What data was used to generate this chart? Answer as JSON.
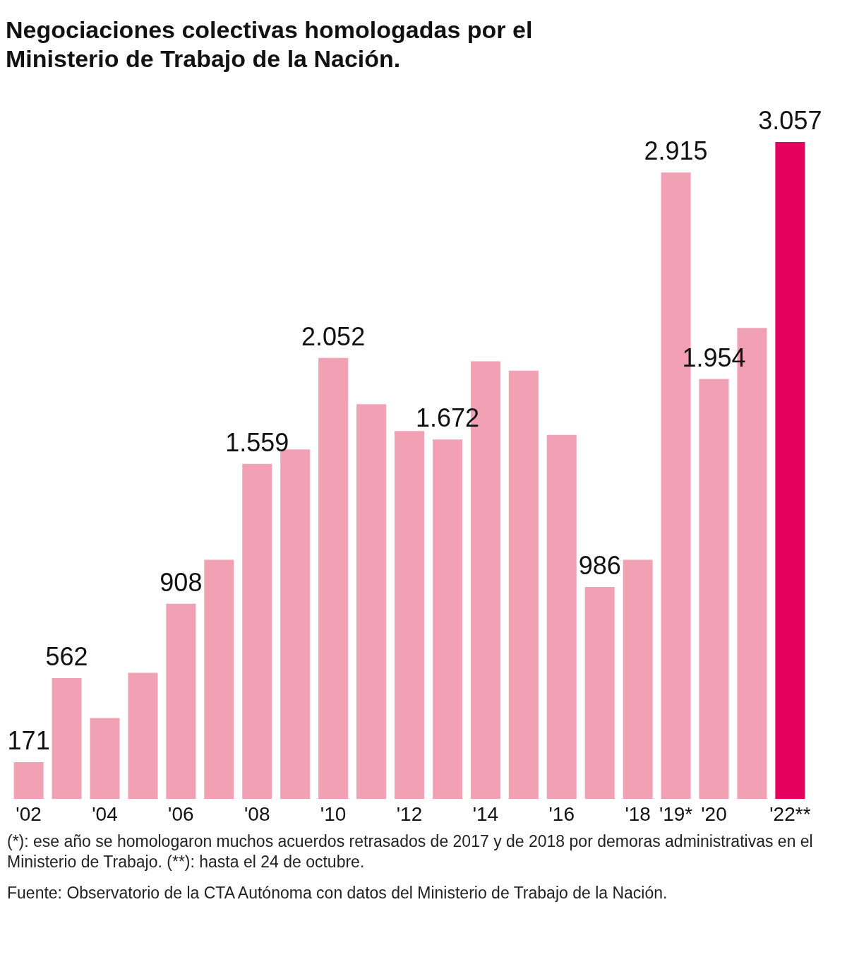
{
  "chart_data": {
    "type": "bar",
    "title": "Negociaciones colectivas homologadas por el Ministerio de Trabajo de la Nación.",
    "categories": [
      "'02",
      null,
      "'04",
      null,
      "'06",
      null,
      "'08",
      null,
      "'10",
      null,
      "'12",
      null,
      "'14",
      null,
      "'16",
      null,
      "'18",
      "'19*",
      "'20",
      null,
      "'22**"
    ],
    "values": [
      171,
      562,
      376,
      587,
      908,
      1113,
      1559,
      1626,
      2052,
      1837,
      1712,
      1672,
      2036,
      1993,
      1694,
      986,
      1113,
      2915,
      1954,
      2192,
      3057
    ],
    "colors": [
      "#f2a1b5",
      "#f2a1b5",
      "#f2a1b5",
      "#f2a1b5",
      "#f2a1b5",
      "#f2a1b5",
      "#f2a1b5",
      "#f2a1b5",
      "#f2a1b5",
      "#f2a1b5",
      "#f2a1b5",
      "#f2a1b5",
      "#f2a1b5",
      "#f2a1b5",
      "#f2a1b5",
      "#f2a1b5",
      "#f2a1b5",
      "#f2a1b5",
      "#f2a1b5",
      "#f2a1b5",
      "#e5005e"
    ],
    "value_labels": [
      "171",
      "562",
      null,
      null,
      "908",
      null,
      "1.559",
      null,
      "2.052",
      null,
      null,
      "1.672",
      null,
      null,
      null,
      "986",
      null,
      "2.915",
      "1.954",
      null,
      "3.057"
    ],
    "grid": false,
    "annotations": [
      "(*): ese año se homologaron muchos acuerdos retrasados de 2017 y de 2018 por demoras administrativas en el Ministerio de Trabajo. (**): hasta el 24 de octubre.",
      "Fuente: Observatorio de la CTA Autónoma con datos del Ministerio de Trabajo de la Nación."
    ]
  }
}
